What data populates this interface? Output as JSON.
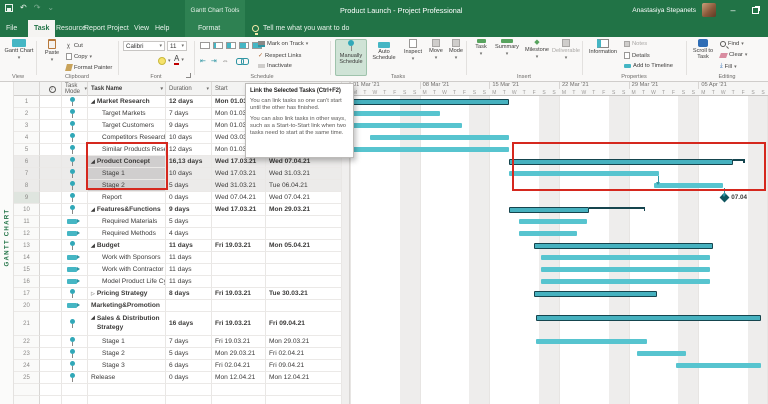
{
  "colors": {
    "app_green": "#217346",
    "bar_teal": "#57c4cf",
    "summary_teal": "#46b1bf",
    "summary_border": "#15454e",
    "milestone_teal": "#10565f",
    "selection_red": "#d5281e"
  },
  "titlebar": {
    "contextual_label": "Gantt Chart Tools",
    "title": "Product Launch - Project Professional",
    "user": "Anastasiya Stepanets"
  },
  "tabs": {
    "file": "File",
    "task": "Task",
    "resource": "Resource",
    "report": "Report",
    "project": "Project",
    "view": "View",
    "help": "Help",
    "format": "Format",
    "tellme": "Tell me what you want to do"
  },
  "ribbon": {
    "view": {
      "label": "View",
      "gantt_chart": "Gantt Chart"
    },
    "clipboard": {
      "label": "Clipboard",
      "paste": "Paste",
      "cut": "Cut",
      "copy": "Copy",
      "format_painter": "Format Painter"
    },
    "font": {
      "label": "Font",
      "font_name": "Calibri",
      "font_size": "11",
      "bold": "B",
      "italic": "I",
      "underline": "U"
    },
    "schedule": {
      "label": "Schedule",
      "mark_on_track": "Mark on Track",
      "respect_links": "Respect Links",
      "inactivate": "Inactivate"
    },
    "tasks": {
      "label": "Tasks",
      "manually": "Manually Schedule",
      "auto": "Auto Schedule",
      "inspect": "Inspect",
      "move": "Move",
      "mode": "Mode"
    },
    "insert": {
      "label": "Insert",
      "task": "Task",
      "summary": "Summary",
      "milestone": "Milestone",
      "deliverable": "Deliverable"
    },
    "properties": {
      "label": "Properties",
      "information": "Information",
      "notes": "Notes",
      "details": "Details",
      "add_to_timeline": "Add to Timeline"
    },
    "editing": {
      "label": "Editing",
      "scroll_to_task": "Scroll to Task",
      "find": "Find",
      "clear": "Clear",
      "fill": "Fill"
    }
  },
  "tooltip": {
    "title": "Link the Selected Tasks (Ctrl+F2)",
    "body1": "You can link tasks so one can't start until the other has finished.",
    "body2": "You can also link tasks in other ways, such as a Start-to-Start link when two tasks need to start at the same time."
  },
  "view_label": "GANTT CHART",
  "table": {
    "header": {
      "task_mode": "Task Mode",
      "task_name": "Task Name",
      "duration": "Duration",
      "start": "Start"
    },
    "rows": [
      {
        "num": "1",
        "name": "Market Research",
        "duration": "12 days",
        "start": "Mon 01.03.21",
        "finish": "",
        "mode": "manual",
        "bold": true,
        "indent": 0,
        "tri": "open"
      },
      {
        "num": "2",
        "name": "Target Markets",
        "duration": "7 days",
        "start": "Mon 01.03.21",
        "finish": "",
        "mode": "manual",
        "indent": 1
      },
      {
        "num": "3",
        "name": "Target Customers",
        "duration": "9 days",
        "start": "Mon 01.03.21",
        "finish": "",
        "mode": "manual",
        "indent": 1
      },
      {
        "num": "4",
        "name": "Competitors Research",
        "duration": "10 days",
        "start": "Wed 03.03.21",
        "finish": "",
        "mode": "manual",
        "indent": 1
      },
      {
        "num": "5",
        "name": "Similar Products Rese",
        "duration": "12 days",
        "start": "Mon 01.03.21",
        "finish": "",
        "mode": "manual",
        "indent": 1
      },
      {
        "num": "6",
        "name": "Product Concept",
        "duration": "16,13 days",
        "start": "Wed 17.03.21",
        "finish": "Wed 07.04.21",
        "mode": "manual",
        "bold": true,
        "indent": 0,
        "tri": "open",
        "sel": "dark",
        "numsel": true
      },
      {
        "num": "7",
        "name": "Stage 1",
        "duration": "10 days",
        "start": "Wed 17.03.21",
        "finish": "Wed 31.03.21",
        "mode": "manual",
        "indent": 1,
        "sel": "dark",
        "numsel": true
      },
      {
        "num": "8",
        "name": "Stage 2",
        "duration": "5 days",
        "start": "Wed 31.03.21",
        "finish": "Tue 06.04.21",
        "mode": "manual",
        "indent": 1,
        "sel": "dark",
        "numsel": true
      },
      {
        "num": "9",
        "name": "Report",
        "duration": "0 days",
        "start": "Wed 07.04.21",
        "finish": "Wed 07.04.21",
        "mode": "manual",
        "indent": 1,
        "numsel": true
      },
      {
        "num": "10",
        "name": "Features&Functions",
        "duration": "9 days",
        "start": "Wed 17.03.21",
        "finish": "Mon 29.03.21",
        "mode": "manual",
        "bold": true,
        "indent": 0,
        "tri": "open"
      },
      {
        "num": "11",
        "name": "Required Materials",
        "duration": "5 days",
        "start": "",
        "finish": "",
        "mode": "auto",
        "indent": 1
      },
      {
        "num": "12",
        "name": "Required Methods",
        "duration": "4 days",
        "start": "",
        "finish": "",
        "mode": "auto",
        "indent": 1
      },
      {
        "num": "13",
        "name": "Budget",
        "duration": "11 days",
        "start": "Fri 19.03.21",
        "finish": "Mon 05.04.21",
        "mode": "manual",
        "bold": true,
        "indent": 0,
        "tri": "open"
      },
      {
        "num": "14",
        "name": "Work with Sponsors",
        "duration": "11 days",
        "start": "",
        "finish": "",
        "mode": "auto",
        "indent": 1
      },
      {
        "num": "15",
        "name": "Work with Contractor",
        "duration": "11 days",
        "start": "",
        "finish": "",
        "mode": "auto",
        "indent": 1
      },
      {
        "num": "16",
        "name": "Model Product Life Cy",
        "duration": "11 days",
        "start": "",
        "finish": "",
        "mode": "auto",
        "indent": 1
      },
      {
        "num": "17",
        "name": "Pricing Strategy",
        "duration": "8 days",
        "start": "Fri 19.03.21",
        "finish": "Tue 30.03.21",
        "mode": "manual",
        "bold": true,
        "indent": 0,
        "tri": "closed"
      },
      {
        "num": "20",
        "name": "Marketing&Promotion",
        "duration": "",
        "start": "",
        "finish": "",
        "mode": "auto",
        "bold": true,
        "indent": 0
      },
      {
        "num": "21",
        "name": "Sales & Distribution Strategy",
        "duration": "16 days",
        "start": "Fri 19.03.21",
        "finish": "Fri 09.04.21",
        "mode": "manual",
        "bold": true,
        "indent": 0,
        "tri": "open",
        "tall": true
      },
      {
        "num": "22",
        "name": "Stage 1",
        "duration": "7 days",
        "start": "Fri 19.03.21",
        "finish": "Mon 29.03.21",
        "mode": "manual",
        "indent": 1
      },
      {
        "num": "23",
        "name": "Stage 2",
        "duration": "5 days",
        "start": "Mon 29.03.21",
        "finish": "Fri 02.04.21",
        "mode": "manual",
        "indent": 1
      },
      {
        "num": "24",
        "name": "Stage 3",
        "duration": "6 days",
        "start": "Fri 02.04.21",
        "finish": "Fri 09.04.21",
        "mode": "manual",
        "indent": 1
      },
      {
        "num": "25",
        "name": "Release",
        "duration": "0 days",
        "start": "Mon 12.04.21",
        "finish": "Mon 12.04.21",
        "mode": "manual",
        "indent": 0
      },
      {
        "num": "",
        "name": "",
        "duration": "",
        "start": "",
        "finish": "",
        "mode": "none",
        "indent": 0
      },
      {
        "num": "",
        "name": "",
        "duration": "",
        "start": "",
        "finish": "",
        "mode": "none",
        "indent": 0
      }
    ]
  },
  "chart_data": {
    "type": "gantt",
    "timescale_weeks": [
      "01 Mar '21",
      "08 Mar '21",
      "15 Mar '21",
      "22 Mar '21",
      "29 Mar '21",
      "05 Apr '21"
    ],
    "day_letters": [
      "M",
      "T",
      "W",
      "T",
      "F",
      "S",
      "S"
    ],
    "num_weeks": 6,
    "bars": [
      {
        "u": 0,
        "kind": "summary",
        "s": 0,
        "e": 16
      },
      {
        "u": 1,
        "kind": "task",
        "s": 0,
        "e": 9
      },
      {
        "u": 2,
        "kind": "task",
        "s": 0,
        "e": 11.3
      },
      {
        "u": 3,
        "kind": "task",
        "s": 2,
        "e": 16
      },
      {
        "u": 4,
        "kind": "task",
        "s": 0,
        "e": 16
      },
      {
        "u": 5,
        "kind": "summary",
        "s": 16,
        "e": 38.5,
        "bracket": 39.5
      },
      {
        "u": 6,
        "kind": "task",
        "s": 16,
        "e": 31
      },
      {
        "u": 7,
        "kind": "task",
        "s": 30.5,
        "e": 37.5
      },
      {
        "u": 8,
        "kind": "milestone",
        "s": 37.6,
        "label": "07.04"
      },
      {
        "u": 9,
        "kind": "summary",
        "s": 16,
        "e": 24,
        "bracket": 29.5
      },
      {
        "u": 10,
        "kind": "task",
        "s": 17,
        "e": 23.8
      },
      {
        "u": 11,
        "kind": "task",
        "s": 17,
        "e": 22.8
      },
      {
        "u": 12,
        "kind": "summary",
        "s": 18.5,
        "e": 36.5
      },
      {
        "u": 13,
        "kind": "task",
        "s": 19.2,
        "e": 36.2
      },
      {
        "u": 14,
        "kind": "task",
        "s": 19.2,
        "e": 36.2
      },
      {
        "u": 15,
        "kind": "task",
        "s": 19.2,
        "e": 36.2
      },
      {
        "u": 16,
        "kind": "summary",
        "s": 18.5,
        "e": 30.8
      },
      {
        "u": 18,
        "kind": "summary",
        "s": 18.7,
        "e": 41.3
      },
      {
        "u": 20,
        "kind": "task",
        "s": 18.7,
        "e": 29.8
      },
      {
        "u": 21,
        "kind": "task",
        "s": 28.8,
        "e": 33.8
      },
      {
        "u": 22,
        "kind": "task",
        "s": 32.8,
        "e": 41.3
      }
    ],
    "links": [
      [
        6,
        7
      ],
      [
        7,
        8
      ]
    ]
  }
}
